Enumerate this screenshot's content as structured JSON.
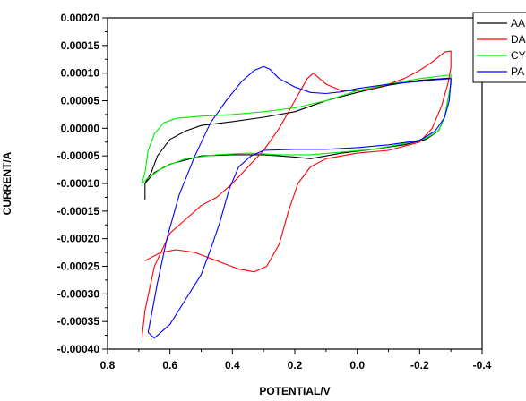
{
  "chart_data": {
    "type": "line",
    "title": "",
    "xlabel": "POTENTIAL/V",
    "ylabel": "CURRENT/A",
    "xlim": [
      0.8,
      -0.4
    ],
    "ylim": [
      -0.0004,
      0.0002
    ],
    "x_ticks": [
      "0.8",
      "0.6",
      "0.4",
      "0.2",
      "0.0",
      "-0.2",
      "-0.4"
    ],
    "y_ticks": [
      "0.00020",
      "0.00015",
      "0.00010",
      "0.00005",
      "0.00000",
      "-0.00005",
      "-0.00010",
      "-0.00015",
      "-0.00020",
      "-0.00025",
      "-0.00030",
      "-0.00035",
      "-0.00040"
    ],
    "grid": false,
    "legend_position": "top-right",
    "series": [
      {
        "name": "AA",
        "color": "#000000",
        "points": [
          [
            0.68,
            -0.00013
          ],
          [
            0.68,
            -0.0001
          ],
          [
            0.66,
            -8e-05
          ],
          [
            0.64,
            -5e-05
          ],
          [
            0.6,
            -2e-05
          ],
          [
            0.55,
            -5e-06
          ],
          [
            0.5,
            5e-06
          ],
          [
            0.4,
            1.2e-05
          ],
          [
            0.3,
            2e-05
          ],
          [
            0.2,
            3e-05
          ],
          [
            0.15,
            4e-05
          ],
          [
            0.1,
            5e-05
          ],
          [
            0.0,
            6.5e-05
          ],
          [
            -0.1,
            7.8e-05
          ],
          [
            -0.2,
            8.7e-05
          ],
          [
            -0.3,
            9.1e-05
          ],
          [
            -0.3,
            8e-05
          ],
          [
            -0.29,
            5e-05
          ],
          [
            -0.28,
            2e-05
          ],
          [
            -0.26,
            -5e-06
          ],
          [
            -0.22,
            -2e-05
          ],
          [
            -0.15,
            -3e-05
          ],
          [
            -0.05,
            -3.8e-05
          ],
          [
            0.05,
            -4.5e-05
          ],
          [
            0.1,
            -5e-05
          ],
          [
            0.15,
            -5.5e-05
          ],
          [
            0.2,
            -5.2e-05
          ],
          [
            0.3,
            -4.8e-05
          ],
          [
            0.4,
            -4.8e-05
          ],
          [
            0.5,
            -5e-05
          ],
          [
            0.6,
            -6.5e-05
          ],
          [
            0.65,
            -8e-05
          ],
          [
            0.68,
            -0.0001
          ]
        ]
      },
      {
        "name": "DA",
        "color": "#ff0000",
        "points": [
          [
            0.68,
            -0.00024
          ],
          [
            0.63,
            -0.000225
          ],
          [
            0.58,
            -0.00022
          ],
          [
            0.52,
            -0.000225
          ],
          [
            0.45,
            -0.00024
          ],
          [
            0.38,
            -0.000255
          ],
          [
            0.33,
            -0.00026
          ],
          [
            0.29,
            -0.00025
          ],
          [
            0.25,
            -0.00021
          ],
          [
            0.22,
            -0.00015
          ],
          [
            0.19,
            -0.0001
          ],
          [
            0.15,
            -7e-05
          ],
          [
            0.1,
            -5.5e-05
          ],
          [
            0.05,
            -5e-05
          ],
          [
            0.0,
            -4.5e-05
          ],
          [
            -0.1,
            -4e-05
          ],
          [
            -0.2,
            -2.5e-05
          ],
          [
            -0.24,
            0.0
          ],
          [
            -0.27,
            4e-05
          ],
          [
            -0.29,
            8e-05
          ],
          [
            -0.3,
            0.00011
          ],
          [
            -0.3,
            0.00014
          ],
          [
            -0.28,
            0.000138
          ],
          [
            -0.24,
            0.00012
          ],
          [
            -0.2,
            0.000105
          ],
          [
            -0.15,
            9e-05
          ],
          [
            -0.1,
            8e-05
          ],
          [
            -0.05,
            7.2e-05
          ],
          [
            0.0,
            6.8e-05
          ],
          [
            0.05,
            6.8e-05
          ],
          [
            0.1,
            8e-05
          ],
          [
            0.13,
            9.5e-05
          ],
          [
            0.14,
            0.0001
          ],
          [
            0.16,
            9e-05
          ],
          [
            0.2,
            5e-05
          ],
          [
            0.25,
            0.0
          ],
          [
            0.3,
            -4e-05
          ],
          [
            0.35,
            -7e-05
          ],
          [
            0.4,
            -0.0001
          ],
          [
            0.45,
            -0.000125
          ],
          [
            0.5,
            -0.00014
          ],
          [
            0.55,
            -0.000165
          ],
          [
            0.6,
            -0.00019
          ],
          [
            0.65,
            -0.00025
          ],
          [
            0.68,
            -0.00033
          ],
          [
            0.69,
            -0.00038
          ]
        ]
      },
      {
        "name": "CY",
        "color": "#00ee00",
        "points": [
          [
            0.69,
            -0.0001
          ],
          [
            0.68,
            -8e-05
          ],
          [
            0.67,
            -4e-05
          ],
          [
            0.65,
            -1e-05
          ],
          [
            0.62,
            1e-05
          ],
          [
            0.58,
            1.8e-05
          ],
          [
            0.5,
            2.2e-05
          ],
          [
            0.4,
            2.5e-05
          ],
          [
            0.3,
            3e-05
          ],
          [
            0.2,
            3.7e-05
          ],
          [
            0.1,
            5e-05
          ],
          [
            0.0,
            6.8e-05
          ],
          [
            -0.1,
            8e-05
          ],
          [
            -0.2,
            9e-05
          ],
          [
            -0.3,
            9.7e-05
          ],
          [
            -0.3,
            8e-05
          ],
          [
            -0.29,
            5e-05
          ],
          [
            -0.28,
            2e-05
          ],
          [
            -0.26,
            -5e-06
          ],
          [
            -0.22,
            -1.8e-05
          ],
          [
            -0.15,
            -2.8e-05
          ],
          [
            -0.05,
            -3.8e-05
          ],
          [
            0.05,
            -4.3e-05
          ],
          [
            0.15,
            -4.8e-05
          ],
          [
            0.25,
            -4.8e-05
          ],
          [
            0.35,
            -4.5e-05
          ],
          [
            0.45,
            -4.8e-05
          ],
          [
            0.55,
            -5.5e-05
          ],
          [
            0.62,
            -7e-05
          ],
          [
            0.67,
            -9e-05
          ],
          [
            0.69,
            -0.0001
          ]
        ]
      },
      {
        "name": "PA",
        "color": "#0000ff",
        "points": [
          [
            0.67,
            -0.00037
          ],
          [
            0.65,
            -0.00038
          ],
          [
            0.6,
            -0.000355
          ],
          [
            0.55,
            -0.00031
          ],
          [
            0.5,
            -0.000265
          ],
          [
            0.47,
            -0.00022
          ],
          [
            0.44,
            -0.00017
          ],
          [
            0.41,
            -0.00011
          ],
          [
            0.38,
            -7e-05
          ],
          [
            0.34,
            -5e-05
          ],
          [
            0.3,
            -4e-05
          ],
          [
            0.2,
            -3.8e-05
          ],
          [
            0.1,
            -3.8e-05
          ],
          [
            0.0,
            -3.5e-05
          ],
          [
            -0.1,
            -3e-05
          ],
          [
            -0.2,
            -2.2e-05
          ],
          [
            -0.25,
            -5e-06
          ],
          [
            -0.28,
            2e-05
          ],
          [
            -0.295,
            5e-05
          ],
          [
            -0.3,
            9e-05
          ],
          [
            -0.25,
            8.8e-05
          ],
          [
            -0.2,
            8.5e-05
          ],
          [
            -0.1,
            8e-05
          ],
          [
            0.0,
            7.2e-05
          ],
          [
            0.05,
            6.6e-05
          ],
          [
            0.1,
            6.3e-05
          ],
          [
            0.15,
            6.5e-05
          ],
          [
            0.2,
            7.5e-05
          ],
          [
            0.25,
            9e-05
          ],
          [
            0.28,
            0.000107
          ],
          [
            0.3,
            0.000112
          ],
          [
            0.33,
            0.000105
          ],
          [
            0.37,
            8.5e-05
          ],
          [
            0.42,
            5e-05
          ],
          [
            0.47,
            1e-05
          ],
          [
            0.52,
            -5e-05
          ],
          [
            0.57,
            -0.00012
          ],
          [
            0.61,
            -0.0002
          ],
          [
            0.64,
            -0.00028
          ],
          [
            0.66,
            -0.00034
          ],
          [
            0.67,
            -0.00037
          ]
        ]
      }
    ]
  }
}
